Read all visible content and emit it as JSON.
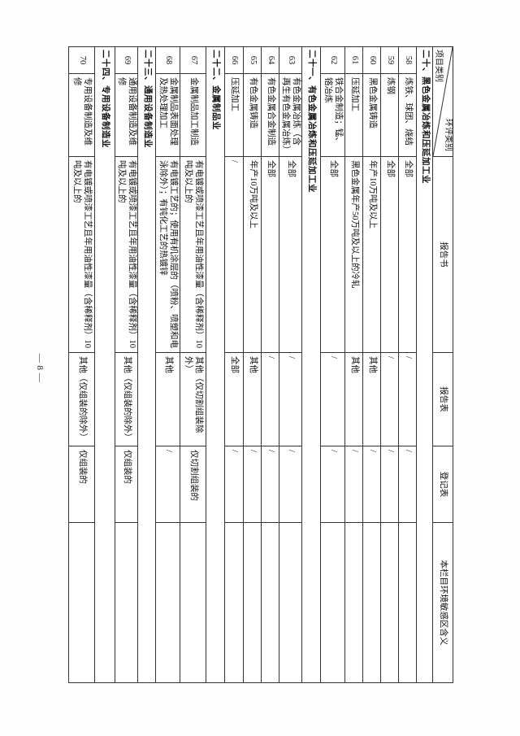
{
  "page": {
    "page_number": "— 8 —"
  },
  "table": {
    "header": {
      "diagonal_top_right": "环评类别",
      "diagonal_bottom_left": "项目类别",
      "col_report_book": "报告书",
      "col_report_form": "报告表",
      "col_registration_form": "登记表",
      "col_sensitive_meaning": "本栏目环境敏感区含义"
    },
    "rows": [
      {
        "type": "section",
        "label": "二十、黑色金属冶炼和压延加工业"
      },
      {
        "type": "item",
        "no": "58",
        "name": "炼铁、球团、烧结",
        "report_book": "全部",
        "report_form": "/",
        "registration_form": "/",
        "sensitive_area_meaning": ""
      },
      {
        "type": "item",
        "no": "59",
        "name": "炼钢",
        "report_book": "全部",
        "report_form": "/",
        "registration_form": "/",
        "sensitive_area_meaning": ""
      },
      {
        "type": "item",
        "no": "60",
        "name": "黑色金属铸造",
        "report_book": "年产10万吨及以上",
        "report_form": "其他",
        "registration_form": "/",
        "sensitive_area_meaning": ""
      },
      {
        "type": "item",
        "no": "61",
        "name": "压延加工",
        "report_book": "黑色金属年产50万吨及以上的冷轧",
        "report_form": "其他",
        "registration_form": "/",
        "sensitive_area_meaning": ""
      },
      {
        "type": "item",
        "no": "62",
        "name": "铁合金制造；锰、铬冶炼",
        "report_book": "全部",
        "report_form": "/",
        "registration_form": "/",
        "sensitive_area_meaning": ""
      },
      {
        "type": "section",
        "label": "二十一、有色金属冶炼和压延加工业"
      },
      {
        "type": "item",
        "no": "63",
        "name": "有色金属冶炼（含再生有色金属冶炼）",
        "report_book": "全部",
        "report_form": "/",
        "registration_form": "/",
        "sensitive_area_meaning": ""
      },
      {
        "type": "item",
        "no": "64",
        "name": "有色金属合金制造",
        "report_book": "全部",
        "report_form": "/",
        "registration_form": "/",
        "sensitive_area_meaning": ""
      },
      {
        "type": "item",
        "no": "65",
        "name": "有色金属铸造",
        "report_book": "年产10万吨及以上",
        "report_form": "其他",
        "registration_form": "/",
        "sensitive_area_meaning": ""
      },
      {
        "type": "item",
        "no": "66",
        "name": "压延加工",
        "report_book": "/",
        "report_form": "全部",
        "registration_form": "/",
        "sensitive_area_meaning": ""
      },
      {
        "type": "section",
        "label": "二十二、金属制品业"
      },
      {
        "type": "item",
        "no": "67",
        "name": "金属制品加工制造",
        "report_book": "有电镀或喷漆工艺且年用油性漆量（含稀释剂）10吨及以上的",
        "report_form": "其他（仅切割组装除外）",
        "registration_form": "仅切割组装的",
        "sensitive_area_meaning": ""
      },
      {
        "type": "item",
        "no": "68",
        "name": "金属制品表面处理及热处理加工",
        "report_book": "有电镀工艺的；使用有机涂层的（喷粉、喷塑和电泳除外）；有钝化工艺的热镀锌",
        "report_form": "其他",
        "registration_form": "/",
        "sensitive_area_meaning": ""
      },
      {
        "type": "section",
        "label": "二十三、通用设备制造业"
      },
      {
        "type": "item",
        "no": "69",
        "name": "通用设备制造及维修",
        "report_book": "有电镀或喷漆工艺且年用油性漆量（含稀释剂）10吨及以上的",
        "report_form": "其他（仅组装的除外）",
        "registration_form": "仅组装的",
        "sensitive_area_meaning": ""
      },
      {
        "type": "section",
        "label": "二十四、专用设备制造业"
      },
      {
        "type": "item",
        "no": "70",
        "name": "专用设备制造及维修",
        "report_book": "有电镀或喷漆工艺且年用油性漆量（含稀释剂）10吨及以上的",
        "report_form": "其他（仅组装的除外）",
        "registration_form": "仅组装的",
        "sensitive_area_meaning": ""
      }
    ]
  }
}
